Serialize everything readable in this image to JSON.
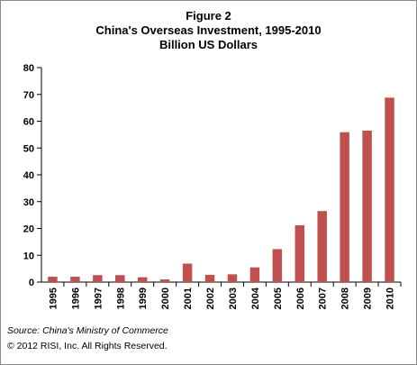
{
  "chart_data": {
    "type": "bar",
    "title_lines": [
      "Figure 2",
      "China's Overseas Investment, 1995-2010",
      "Billion US Dollars"
    ],
    "categories": [
      "1995",
      "1996",
      "1997",
      "1998",
      "1999",
      "2000",
      "2001",
      "2002",
      "2003",
      "2004",
      "2005",
      "2006",
      "2007",
      "2008",
      "2009",
      "2010"
    ],
    "values": [
      2.0,
      2.0,
      2.6,
      2.6,
      1.8,
      1.0,
      6.9,
      2.7,
      2.9,
      5.5,
      12.3,
      21.2,
      26.5,
      55.9,
      56.5,
      68.8
    ],
    "ylim": [
      0,
      80
    ],
    "yticks": [
      0,
      10,
      20,
      30,
      40,
      50,
      60,
      70,
      80
    ],
    "grid": false,
    "bar_color": "#c0504d"
  },
  "footer": {
    "source": "Source: China's Ministry of Commerce",
    "copyright": "© 2012 RISI, Inc. All Rights Reserved."
  }
}
